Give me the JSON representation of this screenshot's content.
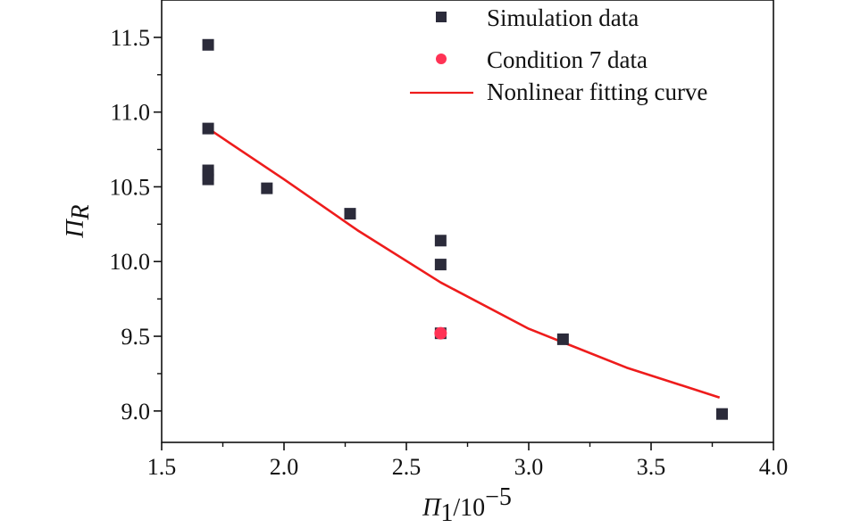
{
  "chart_data": {
    "type": "scatter",
    "title": "",
    "xlabel": {
      "main": "Π",
      "sub": "1",
      "rest": "/10",
      "sup": "−5"
    },
    "ylabel": {
      "main": "Π",
      "sub": "R"
    },
    "xlim": [
      1.5,
      4.0
    ],
    "ylim": [
      8.79,
      11.75
    ],
    "xticks": [
      "1.5",
      "2.0",
      "2.5",
      "3.0",
      "3.5",
      "4.0"
    ],
    "xtick_values": [
      1.5,
      2.0,
      2.5,
      3.0,
      3.5,
      4.0
    ],
    "yticks": [
      "9.0",
      "9.5",
      "10.0",
      "10.5",
      "11.0",
      "11.5"
    ],
    "ytick_values": [
      9.0,
      9.5,
      10.0,
      10.5,
      11.0,
      11.5
    ],
    "legend_position": "top-right",
    "series": [
      {
        "name": "Simulation data",
        "kind": "scatter",
        "marker": "square",
        "color": "#2b2b3a",
        "points": [
          {
            "x": 1.69,
            "y": 11.45
          },
          {
            "x": 1.69,
            "y": 10.89
          },
          {
            "x": 1.69,
            "y": 10.61
          },
          {
            "x": 1.69,
            "y": 10.58
          },
          {
            "x": 1.69,
            "y": 10.55
          },
          {
            "x": 1.93,
            "y": 10.49
          },
          {
            "x": 2.27,
            "y": 10.32
          },
          {
            "x": 2.64,
            "y": 10.14
          },
          {
            "x": 2.64,
            "y": 9.98
          },
          {
            "x": 2.64,
            "y": 9.52
          },
          {
            "x": 3.14,
            "y": 9.48
          },
          {
            "x": 3.79,
            "y": 8.98
          }
        ]
      },
      {
        "name": "Condition 7 data",
        "kind": "scatter",
        "marker": "circle",
        "color": "#ff3355",
        "points": [
          {
            "x": 2.64,
            "y": 9.52
          }
        ]
      },
      {
        "name": "Nonlinear fitting curve",
        "kind": "line",
        "color": "#ee1c1c",
        "points": [
          {
            "x": 1.69,
            "y": 10.89
          },
          {
            "x": 2.0,
            "y": 10.55
          },
          {
            "x": 2.3,
            "y": 10.21
          },
          {
            "x": 2.64,
            "y": 9.86
          },
          {
            "x": 3.0,
            "y": 9.55
          },
          {
            "x": 3.4,
            "y": 9.29
          },
          {
            "x": 3.78,
            "y": 9.09
          }
        ]
      }
    ]
  }
}
